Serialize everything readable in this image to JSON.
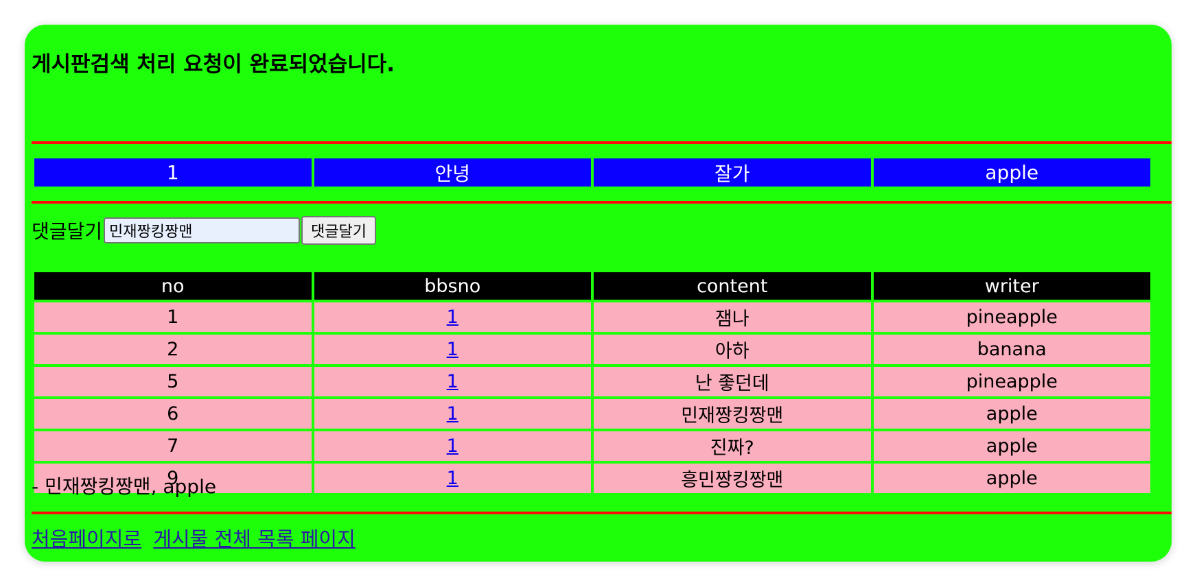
{
  "page": {
    "heading": "게시판검색 처리 요청이 완료되었습니다."
  },
  "bbs": {
    "cells": [
      "1",
      "안녕",
      "잘가",
      "apple"
    ]
  },
  "reply_form": {
    "label": "댓글달기",
    "input_value": "민재짱킹짱맨",
    "button_label": "댓글달기"
  },
  "replies": {
    "headers": [
      "no",
      "bbsno",
      "content",
      "writer"
    ],
    "rows": [
      {
        "no": "1",
        "bbsno": "1",
        "content": "잼나",
        "writer": "pineapple"
      },
      {
        "no": "2",
        "bbsno": "1",
        "content": "아하",
        "writer": "banana"
      },
      {
        "no": "5",
        "bbsno": "1",
        "content": "난 좋던데",
        "writer": "pineapple"
      },
      {
        "no": "6",
        "bbsno": "1",
        "content": "민재짱킹짱맨",
        "writer": "apple"
      },
      {
        "no": "7",
        "bbsno": "1",
        "content": "진짜?",
        "writer": "apple"
      },
      {
        "no": "9",
        "bbsno": "1",
        "content": "흥민짱킹짱맨",
        "writer": "apple"
      }
    ]
  },
  "last_reply": "- 민재짱킹짱맨, apple",
  "footer": {
    "first_page_link": "처음페이지로",
    "list_page_link": "게시물 전체 목록 페이지"
  },
  "colors": {
    "background": "#1eff0a",
    "divider": "#ff0a0a",
    "bbs_row": "#0a00ff",
    "header_row": "#000000",
    "reply_row": "#fbaebd"
  }
}
